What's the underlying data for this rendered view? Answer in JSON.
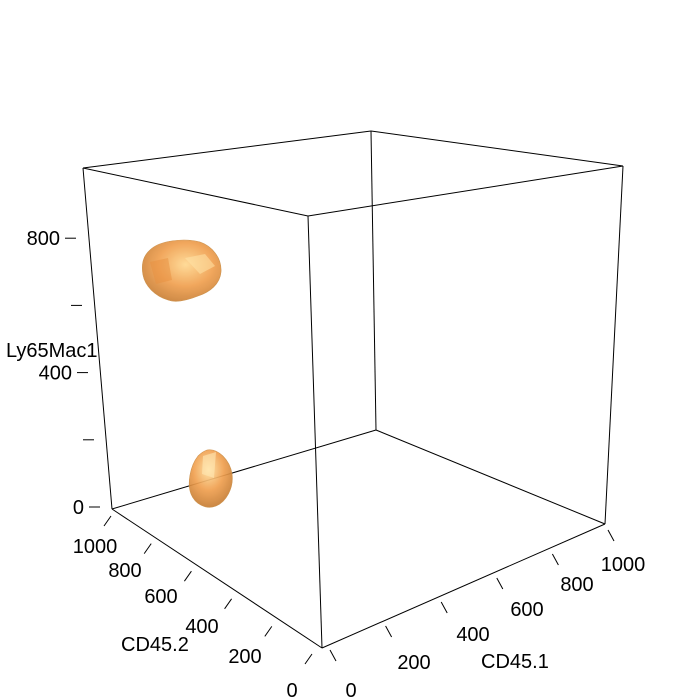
{
  "chart_data": {
    "type": "scatter",
    "subtype": "3d-isosurface",
    "title": "",
    "axes": {
      "x": {
        "label": "CD45.1",
        "range": [
          0,
          1000
        ],
        "ticks": [
          0,
          200,
          400,
          600,
          800,
          1000
        ]
      },
      "y": {
        "label": "CD45.2",
        "range": [
          0,
          1000
        ],
        "ticks": [
          0,
          200,
          400,
          600,
          800,
          1000
        ]
      },
      "z": {
        "label": "Ly65Mac1",
        "range": [
          0,
          1000
        ],
        "ticks": [
          0,
          200,
          400,
          600,
          800
        ],
        "labeled_ticks": [
          0,
          400,
          800
        ]
      }
    },
    "grid": false,
    "legend": "none",
    "colors": {
      "surface": "#f0a050",
      "surface_highlight": "#ffd890",
      "surface_shadow": "#c07830"
    },
    "clusters": [
      {
        "id": "cluster-upper",
        "centroid": {
          "x": 20,
          "y": 950,
          "z": 780
        }
      },
      {
        "id": "cluster-lower",
        "centroid": {
          "x": 80,
          "y": 870,
          "z": 90
        }
      }
    ]
  }
}
